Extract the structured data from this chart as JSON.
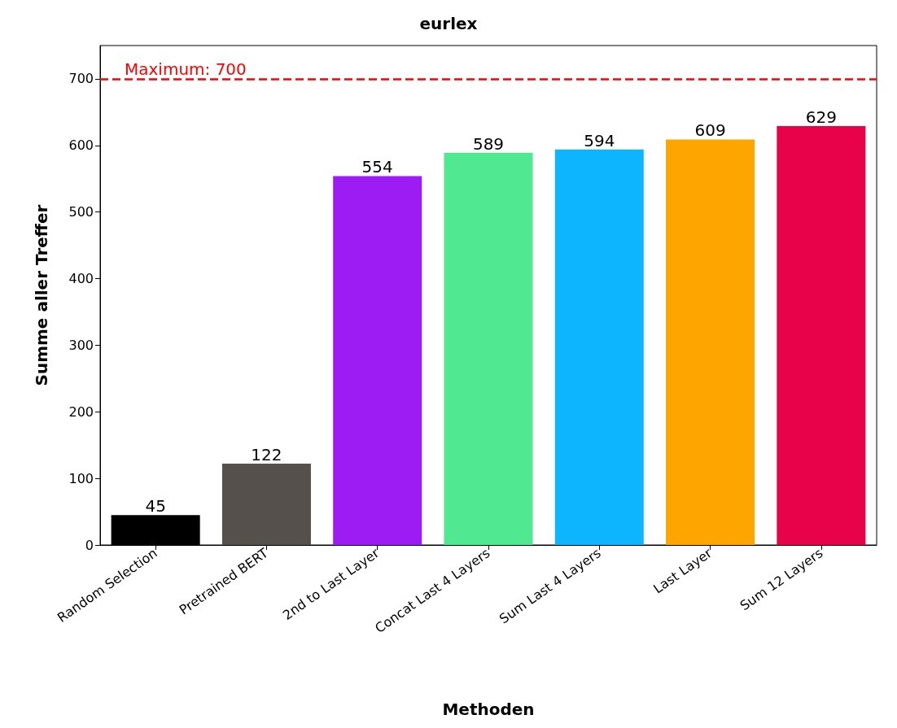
{
  "chart_data": {
    "type": "bar",
    "title": "eurlex",
    "xlabel": "Methoden",
    "ylabel": "Summe aller Treffer",
    "categories": [
      "Random Selection",
      "Pretrained BERT",
      "2nd to Last Layer",
      "Concat Last 4 Layers",
      "Sum Last 4 Layers",
      "Last Layer",
      "Sum 12 Layers"
    ],
    "values": [
      45,
      122,
      554,
      589,
      594,
      609,
      629
    ],
    "colors": [
      "#000000",
      "#55504b",
      "#9d1cf3",
      "#50e891",
      "#0db4fe",
      "#fea500",
      "#e70249"
    ],
    "ylim": [
      0,
      750
    ],
    "yticks": [
      0,
      100,
      200,
      300,
      400,
      500,
      600,
      700
    ],
    "data_labels": true,
    "ref_lines": [
      {
        "axis": "y",
        "value": 700,
        "label": "Maximum: 700",
        "color": "#ff0000",
        "line_style": "dashed"
      }
    ]
  }
}
